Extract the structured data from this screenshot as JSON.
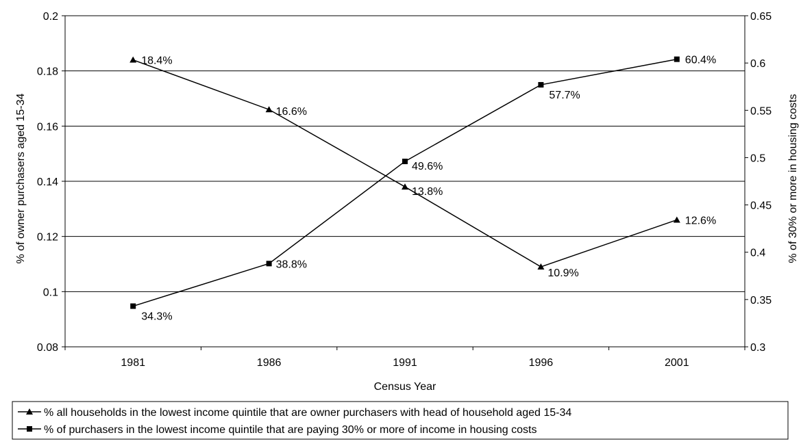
{
  "chart_data": {
    "type": "line",
    "xlabel": "Census Year",
    "ylabel_left": "% of  owner purchasers aged 15-34",
    "ylabel_right": "% of 30% or more in housing costs",
    "categories": [
      "1981",
      "1986",
      "1991",
      "1996",
      "2001"
    ],
    "y_left": {
      "range": [
        0.08,
        0.2
      ],
      "ticks": [
        0.08,
        0.1,
        0.12,
        0.14,
        0.16,
        0.18,
        0.2
      ],
      "tick_labels": [
        "0.08",
        "0.1",
        "0.12",
        "0.14",
        "0.16",
        "0.18",
        "0.2"
      ]
    },
    "y_right": {
      "range": [
        0.3,
        0.65
      ],
      "ticks": [
        0.3,
        0.35,
        0.4,
        0.45,
        0.5,
        0.55,
        0.6,
        0.65
      ],
      "tick_labels": [
        "0.3",
        "0.35",
        "0.4",
        "0.45",
        "0.5",
        "0.55",
        "0.6",
        "0.65"
      ]
    },
    "gridlines": "horizontal, at left-axis major ticks",
    "legend_position": "bottom",
    "series": [
      {
        "name": "% all households in the lowest income quintile that are owner purchasers with head of household aged 15-34",
        "axis": "left",
        "marker": "triangle",
        "values": [
          0.184,
          0.166,
          0.138,
          0.109,
          0.126
        ],
        "labels": [
          "18.4%",
          "16.6%",
          "13.8%",
          "10.9%",
          "12.6%"
        ]
      },
      {
        "name": "% of purchasers in the lowest income quintile that are paying 30% or more of income in housing costs",
        "axis": "right",
        "marker": "square",
        "values": [
          0.343,
          0.388,
          0.496,
          0.577,
          0.604
        ],
        "labels": [
          "34.3%",
          "38.8%",
          "49.6%",
          "57.7%",
          "60.4%"
        ]
      }
    ],
    "colors": {
      "line": "#000000",
      "grid": "#000000",
      "background": "#ffffff"
    }
  }
}
